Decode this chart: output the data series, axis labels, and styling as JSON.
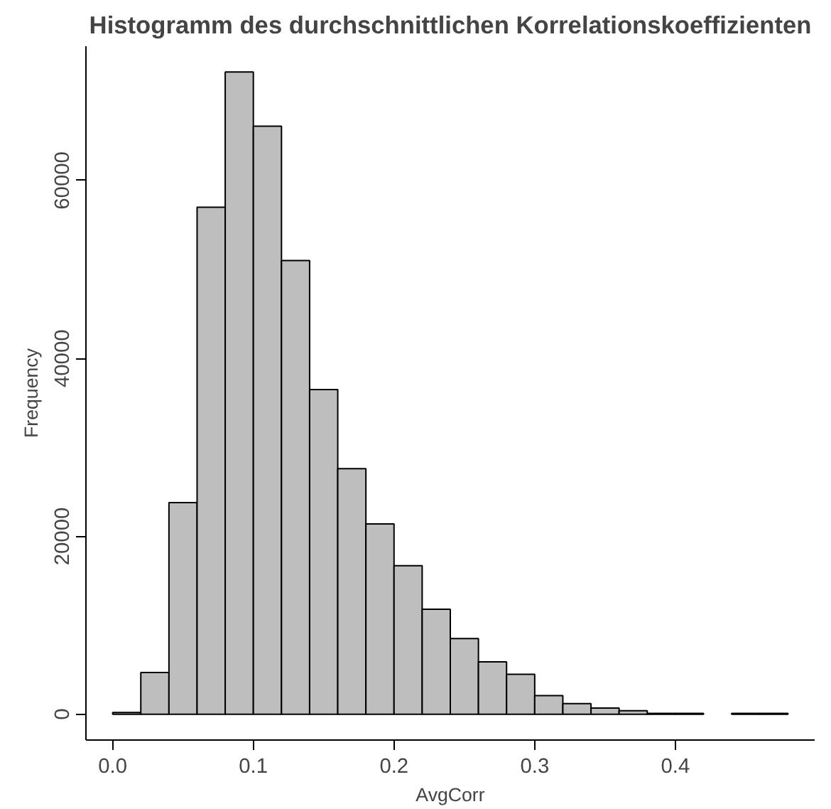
{
  "chart_data": {
    "type": "histogram",
    "title": "Histogramm des durchschnittlichen Korrelationskoeffizienten",
    "xlabel": "AvgCorr",
    "ylabel": "Frequency",
    "bins": [
      0.0,
      0.02,
      0.04,
      0.06,
      0.08,
      0.1,
      0.12,
      0.14,
      0.16,
      0.18,
      0.2,
      0.22,
      0.24,
      0.26,
      0.28,
      0.3,
      0.32,
      0.34,
      0.36,
      0.38,
      0.4,
      0.42,
      0.44,
      0.46,
      0.48
    ],
    "values": [
      200,
      4700,
      23800,
      57000,
      72200,
      66100,
      51000,
      36500,
      27600,
      21400,
      16700,
      11800,
      8500,
      5900,
      4500,
      2100,
      1200,
      700,
      400,
      100,
      100,
      0,
      100,
      100
    ],
    "color": "#bebebe",
    "xlim": [
      -0.019,
      0.499
    ],
    "ylim": [
      -2900,
      75100
    ],
    "xticks": [
      {
        "value": 0,
        "label": "0.0"
      },
      0.1,
      0.2,
      0.3,
      0.4
    ],
    "yticks": [
      0,
      20000,
      40000,
      60000
    ],
    "grid": false
  }
}
